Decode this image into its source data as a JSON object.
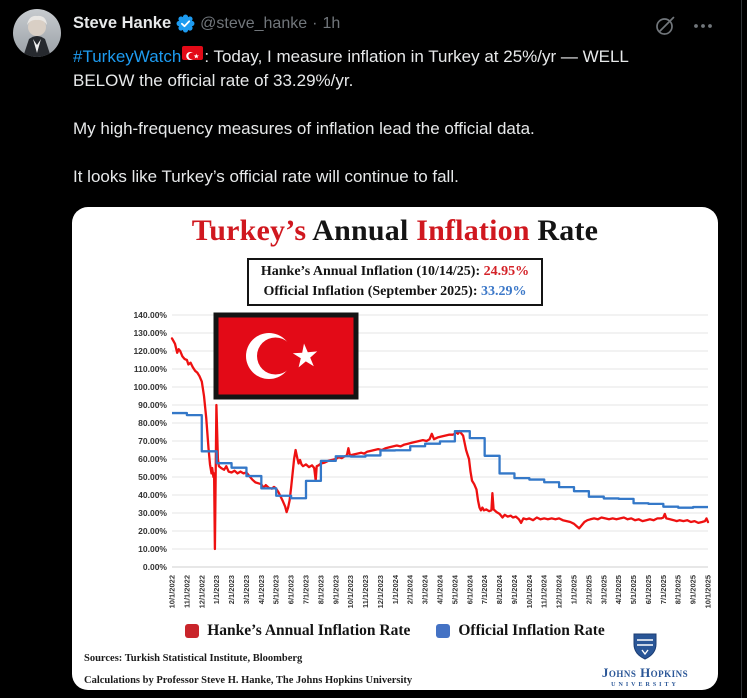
{
  "tweet": {
    "author": "Steve Hanke",
    "handle": "@steve_hanke",
    "separator": "·",
    "timestamp": "1h",
    "hashtag": "#TurkeyWatch",
    "paragraph1_after_flag": ": Today, I measure inflation in Turkey at 25%/yr — WELL BELOW the official rate of 33.29%/yr.",
    "paragraph2": "My high-frequency measures of inflation lead the official data.",
    "paragraph3": "It looks like Turkey’s official rate will continue to fall."
  },
  "chart": {
    "title_parts": [
      {
        "text": "Turkey’s ",
        "color": "#d0181f"
      },
      {
        "text": "Annual ",
        "color": "#141414"
      },
      {
        "text": "Inflation ",
        "color": "#d0181f"
      },
      {
        "text": "Rate",
        "color": "#141414"
      }
    ],
    "info_line1_label": "Hanke’s Annual Inflation (10/14/25): ",
    "info_line1_value": "24.95%",
    "info_line2_label": "Official Inflation (September 2025): ",
    "info_line2_value": "33.29%",
    "source_line1": "Sources: Turkish Statistical Institute, Bloomberg",
    "source_line2": "Calculations by Professor Steve H. Hanke, The Johns Hopkins University",
    "logo_line1": "Johns Hopkins",
    "logo_line2": "UNIVERSITY"
  },
  "colors": {
    "hashtag_blue": "#1d9bf0",
    "value_red": "#d42127",
    "value_blue": "#3c78c8",
    "hanke_swatch": "#c9252b",
    "official_swatch": "#4472c4",
    "flag_red": "#e30a17",
    "jhu_blue": "#2a5697"
  },
  "chart_data": {
    "type": "line",
    "title": "Turkey's Annual Inflation Rate",
    "xlabel": "",
    "ylabel": "",
    "ylim": [
      0,
      140
    ],
    "y_tick_step": 10,
    "y_tick_suffix": "%",
    "grid": true,
    "legend_position": "bottom",
    "x_tick_labels": [
      "10/1/2022",
      "11/1/2022",
      "12/1/2022",
      "1/1/2023",
      "2/1/2023",
      "3/1/2023",
      "4/1/2023",
      "5/1/2023",
      "6/1/2023",
      "7/1/2023",
      "8/1/2023",
      "9/1/2023",
      "10/1/2023",
      "11/1/2023",
      "12/1/2023",
      "1/1/2024",
      "2/1/2024",
      "3/1/2024",
      "4/1/2024",
      "5/1/2024",
      "6/1/2024",
      "7/1/2024",
      "8/1/2024",
      "9/1/2024",
      "10/1/2024",
      "11/1/2024",
      "12/1/2024",
      "1/1/2025",
      "2/1/2025",
      "3/1/2025",
      "4/1/2025",
      "5/1/2025",
      "6/1/2025",
      "7/1/2025",
      "8/1/2025",
      "9/1/2025",
      "10/1/2025"
    ],
    "series": [
      {
        "name": "Hanke’s Annual Inflation Rate",
        "color": "#ee1111",
        "style": "line",
        "latest_label": "24.95% on 10/14/25",
        "points": [
          [
            0,
            127
          ],
          [
            0.1,
            125.5
          ],
          [
            0.2,
            124
          ],
          [
            0.35,
            119
          ],
          [
            0.45,
            121
          ],
          [
            0.55,
            120
          ],
          [
            0.7,
            117
          ],
          [
            0.85,
            115.5
          ],
          [
            1.0,
            115
          ],
          [
            1.1,
            112.5
          ],
          [
            1.25,
            113.5
          ],
          [
            1.4,
            111
          ],
          [
            1.55,
            109
          ],
          [
            1.7,
            108
          ],
          [
            1.85,
            106
          ],
          [
            2.0,
            103
          ],
          [
            2.15,
            95
          ],
          [
            2.3,
            83
          ],
          [
            2.45,
            66
          ],
          [
            2.55,
            57
          ],
          [
            2.65,
            52
          ],
          [
            2.7,
            55
          ],
          [
            2.78,
            50
          ],
          [
            2.83,
            52
          ],
          [
            2.88,
            10
          ],
          [
            2.98,
            90
          ],
          [
            3.08,
            60
          ],
          [
            3.15,
            56
          ],
          [
            3.3,
            55
          ],
          [
            3.5,
            54
          ],
          [
            3.65,
            56
          ],
          [
            3.8,
            53
          ],
          [
            4.0,
            52.5
          ],
          [
            4.2,
            53.5
          ],
          [
            4.4,
            52
          ],
          [
            4.6,
            53
          ],
          [
            4.8,
            52
          ],
          [
            5.0,
            52.5
          ],
          [
            5.2,
            50.5
          ],
          [
            5.4,
            48.5
          ],
          [
            5.6,
            47
          ],
          [
            5.8,
            46.5
          ],
          [
            6.0,
            46
          ],
          [
            6.15,
            44
          ],
          [
            6.3,
            45.5
          ],
          [
            6.5,
            44
          ],
          [
            6.7,
            43.5
          ],
          [
            6.85,
            44.5
          ],
          [
            7.0,
            43.5
          ],
          [
            7.15,
            41.5
          ],
          [
            7.3,
            39
          ],
          [
            7.45,
            36.5
          ],
          [
            7.6,
            33.5
          ],
          [
            7.7,
            30.5
          ],
          [
            7.8,
            33
          ],
          [
            7.9,
            37
          ],
          [
            8.0,
            44
          ],
          [
            8.1,
            52
          ],
          [
            8.2,
            60
          ],
          [
            8.3,
            65
          ],
          [
            8.4,
            61
          ],
          [
            8.5,
            57.5
          ],
          [
            8.6,
            59.5
          ],
          [
            8.7,
            57
          ],
          [
            8.8,
            56
          ],
          [
            8.9,
            56.5
          ],
          [
            9.0,
            57
          ],
          [
            9.2,
            55.5
          ],
          [
            9.4,
            56.5
          ],
          [
            9.55,
            55
          ],
          [
            9.65,
            48
          ],
          [
            9.72,
            56
          ],
          [
            9.85,
            56.5
          ],
          [
            10.0,
            57.5
          ],
          [
            10.25,
            58
          ],
          [
            10.5,
            59
          ],
          [
            10.75,
            59.5
          ],
          [
            11.0,
            60
          ],
          [
            11.2,
            61
          ],
          [
            11.4,
            60.5
          ],
          [
            11.6,
            61.5
          ],
          [
            11.75,
            62
          ],
          [
            11.85,
            66
          ],
          [
            11.95,
            62
          ],
          [
            12.2,
            62.5
          ],
          [
            12.45,
            63
          ],
          [
            12.7,
            63.5
          ],
          [
            12.9,
            63
          ],
          [
            13.1,
            64
          ],
          [
            13.35,
            64.5
          ],
          [
            13.6,
            65
          ],
          [
            13.85,
            65.5
          ],
          [
            14.1,
            65
          ],
          [
            14.35,
            66
          ],
          [
            14.6,
            66.5
          ],
          [
            14.85,
            67
          ],
          [
            15.1,
            67.5
          ],
          [
            15.35,
            67
          ],
          [
            15.6,
            68
          ],
          [
            15.85,
            68.5
          ],
          [
            16.1,
            69
          ],
          [
            16.35,
            69.5
          ],
          [
            16.6,
            70
          ],
          [
            16.85,
            70.5
          ],
          [
            17.1,
            70
          ],
          [
            17.3,
            71
          ],
          [
            17.45,
            74
          ],
          [
            17.6,
            71
          ],
          [
            17.85,
            72
          ],
          [
            18.1,
            72.5
          ],
          [
            18.35,
            73
          ],
          [
            18.6,
            73.5
          ],
          [
            18.85,
            73.5
          ],
          [
            19.0,
            74
          ],
          [
            19.1,
            75
          ],
          [
            19.2,
            74
          ],
          [
            19.3,
            75.5
          ],
          [
            19.45,
            74
          ],
          [
            19.55,
            73
          ],
          [
            19.65,
            69
          ],
          [
            19.75,
            65
          ],
          [
            19.85,
            62.5
          ],
          [
            19.95,
            60
          ],
          [
            20.05,
            53
          ],
          [
            20.15,
            48
          ],
          [
            20.3,
            46
          ],
          [
            20.45,
            43
          ],
          [
            20.55,
            37
          ],
          [
            20.65,
            33
          ],
          [
            20.75,
            31.5
          ],
          [
            20.85,
            33
          ],
          [
            20.95,
            31.5
          ],
          [
            21.1,
            32
          ],
          [
            21.3,
            31
          ],
          [
            21.45,
            31.5
          ],
          [
            21.52,
            41
          ],
          [
            21.6,
            32
          ],
          [
            21.8,
            30.5
          ],
          [
            22.0,
            29.5
          ],
          [
            22.2,
            27.5
          ],
          [
            22.35,
            29
          ],
          [
            22.55,
            28
          ],
          [
            22.75,
            28.5
          ],
          [
            22.9,
            27.5
          ],
          [
            23.1,
            28
          ],
          [
            23.3,
            26.5
          ],
          [
            23.45,
            24.5
          ],
          [
            23.6,
            27
          ],
          [
            23.8,
            26.5
          ],
          [
            24.0,
            27
          ],
          [
            24.25,
            26
          ],
          [
            24.5,
            27.5
          ],
          [
            24.75,
            26.5
          ],
          [
            25.0,
            27
          ],
          [
            25.25,
            26.5
          ],
          [
            25.5,
            27
          ],
          [
            25.75,
            26.5
          ],
          [
            26.0,
            27
          ],
          [
            26.25,
            26
          ],
          [
            26.5,
            25.5
          ],
          [
            26.75,
            25
          ],
          [
            27.0,
            24
          ],
          [
            27.2,
            22.5
          ],
          [
            27.35,
            21.5
          ],
          [
            27.5,
            23
          ],
          [
            27.7,
            25
          ],
          [
            27.9,
            26
          ],
          [
            28.1,
            26.5
          ],
          [
            28.35,
            27
          ],
          [
            28.6,
            26.5
          ],
          [
            28.85,
            27.5
          ],
          [
            29.1,
            27
          ],
          [
            29.35,
            26.5
          ],
          [
            29.6,
            27
          ],
          [
            29.85,
            26.5
          ],
          [
            30.1,
            27
          ],
          [
            30.35,
            27.5
          ],
          [
            30.6,
            26.5
          ],
          [
            30.85,
            27
          ],
          [
            31.1,
            26
          ],
          [
            31.35,
            26.5
          ],
          [
            31.6,
            25.5
          ],
          [
            31.85,
            26
          ],
          [
            32.1,
            26.5
          ],
          [
            32.35,
            26
          ],
          [
            32.6,
            27
          ],
          [
            32.85,
            27
          ],
          [
            33.0,
            27.5
          ],
          [
            33.1,
            29.5
          ],
          [
            33.2,
            27
          ],
          [
            33.45,
            26.5
          ],
          [
            33.7,
            26
          ],
          [
            33.9,
            25.5
          ],
          [
            34.1,
            26
          ],
          [
            34.35,
            25.5
          ],
          [
            34.6,
            26
          ],
          [
            34.85,
            25
          ],
          [
            35.1,
            25.5
          ],
          [
            35.35,
            24.5
          ],
          [
            35.6,
            25
          ],
          [
            35.8,
            25.5
          ],
          [
            35.9,
            27
          ],
          [
            36.0,
            24.95
          ]
        ]
      },
      {
        "name": "Official Inflation Rate",
        "color": "#3478c8",
        "style": "step",
        "latest_label": "33.29% for September 2025",
        "x_months": [
          0,
          1,
          2,
          3,
          4,
          5,
          6,
          7,
          8,
          9,
          10,
          11,
          12,
          13,
          14,
          15,
          16,
          17,
          18,
          19,
          20,
          21,
          22,
          23,
          24,
          25,
          26,
          27,
          28,
          29,
          30,
          31,
          32,
          33,
          34,
          35
        ],
        "values": [
          85.51,
          84.39,
          64.27,
          57.68,
          55.18,
          50.51,
          43.68,
          39.59,
          38.21,
          47.83,
          58.94,
          61.53,
          61.36,
          61.98,
          64.77,
          64.86,
          67.07,
          68.5,
          69.8,
          75.45,
          71.6,
          61.78,
          51.97,
          49.38,
          48.58,
          47.09,
          44.38,
          42.12,
          39.05,
          38.1,
          37.86,
          35.41,
          35.05,
          33.52,
          32.95,
          33.29
        ]
      }
    ]
  }
}
